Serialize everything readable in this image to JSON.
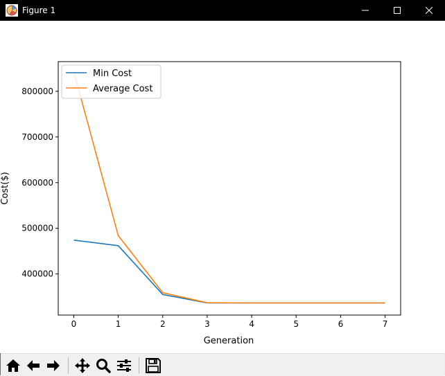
{
  "window": {
    "title": "Figure 1",
    "controls": [
      "minimize",
      "maximize",
      "close"
    ]
  },
  "toolbar": {
    "buttons": [
      {
        "name": "home",
        "icon": "home-icon"
      },
      {
        "name": "back",
        "icon": "arrow-left-icon"
      },
      {
        "name": "forward",
        "icon": "arrow-right-icon"
      },
      {
        "name": "pan",
        "icon": "move-icon"
      },
      {
        "name": "zoom",
        "icon": "zoom-icon"
      },
      {
        "name": "configure-subplots",
        "icon": "sliders-icon"
      },
      {
        "name": "save",
        "icon": "save-icon"
      }
    ]
  },
  "chart_data": {
    "type": "line",
    "title": "",
    "xlabel": "Generation",
    "ylabel": "Cost($)",
    "x": [
      0,
      1,
      2,
      3,
      4,
      5,
      6,
      7
    ],
    "xlim": [
      -0.35,
      7.35
    ],
    "ylim": [
      310000,
      865000
    ],
    "xticks": [
      0,
      1,
      2,
      3,
      4,
      5,
      6,
      7
    ],
    "yticks": [
      400000,
      500000,
      600000,
      700000,
      800000
    ],
    "yticklabels": [
      "400000",
      "500000",
      "600000",
      "700000",
      "800000"
    ],
    "legend_position": "top-left",
    "grid": false,
    "series": [
      {
        "name": "Min Cost",
        "color": "#1f77b4",
        "values": [
          474000,
          462000,
          355000,
          336500,
          336500,
          336500,
          336500,
          336500
        ]
      },
      {
        "name": "Average Cost",
        "color": "#ff7f0e",
        "values": [
          843000,
          484000,
          359000,
          337000,
          336500,
          336500,
          336500,
          336500
        ]
      }
    ]
  }
}
